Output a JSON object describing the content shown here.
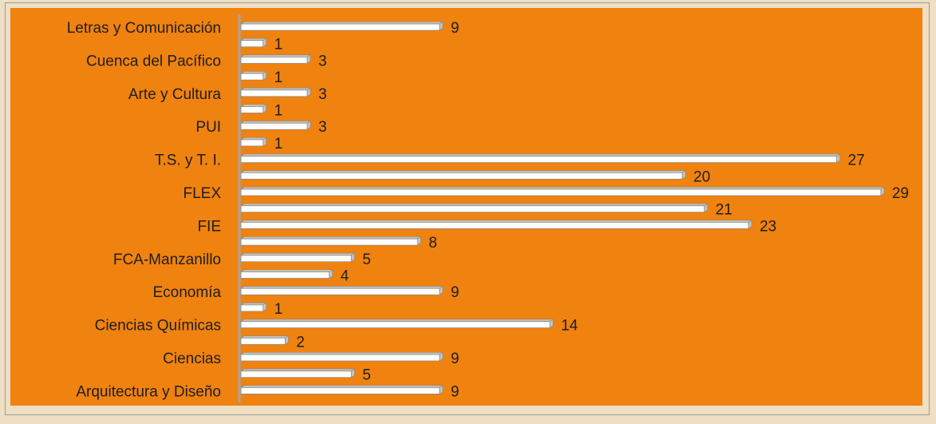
{
  "colors": {
    "background": "#efdfc4",
    "plot_area": "#f0820f",
    "bar_fill": "#ffffff",
    "bar_shade": "#c9c4bc",
    "axis": "#a6a6a6",
    "text": "#1e1e1e"
  },
  "chart_data": {
    "type": "bar",
    "orientation": "horizontal",
    "bar_style": "3d",
    "title": "",
    "xlabel": "",
    "ylabel": "",
    "xlim": [
      0,
      29
    ],
    "grid": false,
    "legend": "none",
    "categories": [
      "Letras y Comunicación",
      "Cuenca del Pacífico",
      "Arte y Cultura",
      "PUI",
      "T.S. y T. I.",
      "FLEX",
      "FIE",
      "FCA-Manzanillo",
      "Economía",
      "Ciencias Químicas",
      "Ciencias",
      "Arquitectura y Diseño"
    ],
    "series": [
      {
        "values": [
          9,
          3,
          3,
          3,
          27,
          29,
          23,
          5,
          9,
          14,
          9,
          9
        ]
      },
      {
        "values": [
          1,
          1,
          1,
          1,
          20,
          21,
          8,
          4,
          1,
          2,
          5,
          null
        ]
      }
    ]
  }
}
